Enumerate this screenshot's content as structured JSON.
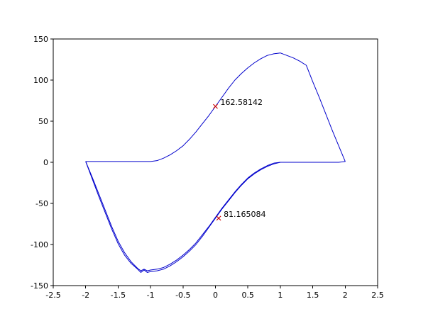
{
  "figure": {
    "background": "#ffffff",
    "border_color": "#000000",
    "tick_label_color": "#000000"
  },
  "chart_data": {
    "type": "line",
    "title": "",
    "xlabel": "",
    "ylabel": "",
    "xlim": [
      -2.5,
      2.5
    ],
    "ylim": [
      -150,
      150
    ],
    "xticks": [
      -2.5,
      -2,
      -1.5,
      -1,
      -0.5,
      0,
      0.5,
      1,
      1.5,
      2,
      2.5
    ],
    "yticks": [
      -150,
      -100,
      -50,
      0,
      50,
      100,
      150
    ],
    "grid": false,
    "legend": "none",
    "line_color": "#0000cc",
    "series": [
      {
        "name": "hysteresis-main-loop",
        "points": [
          [
            -2,
            1
          ],
          [
            -1.8,
            1
          ],
          [
            -1.6,
            1
          ],
          [
            -1.4,
            1
          ],
          [
            -1.2,
            1
          ],
          [
            -1,
            1
          ],
          [
            -0.9,
            2
          ],
          [
            -0.8,
            5
          ],
          [
            -0.7,
            9
          ],
          [
            -0.6,
            14
          ],
          [
            -0.5,
            20
          ],
          [
            -0.4,
            28
          ],
          [
            -0.3,
            37
          ],
          [
            -0.2,
            47
          ],
          [
            -0.1,
            57
          ],
          [
            0,
            68
          ],
          [
            0.1,
            79
          ],
          [
            0.2,
            90
          ],
          [
            0.3,
            100
          ],
          [
            0.4,
            108
          ],
          [
            0.5,
            115
          ],
          [
            0.6,
            121
          ],
          [
            0.7,
            126
          ],
          [
            0.8,
            130
          ],
          [
            0.9,
            132
          ],
          [
            1,
            133
          ],
          [
            1.1,
            130
          ],
          [
            1.2,
            127
          ],
          [
            1.3,
            123
          ],
          [
            1.4,
            118
          ],
          [
            1.5,
            98
          ],
          [
            1.6,
            79
          ],
          [
            1.7,
            59
          ],
          [
            1.8,
            39
          ],
          [
            1.9,
            20
          ],
          [
            2,
            1
          ],
          [
            1.9,
            0
          ],
          [
            1.7,
            0
          ],
          [
            1.5,
            0
          ],
          [
            1.3,
            0
          ],
          [
            1.1,
            0
          ],
          [
            1,
            0
          ],
          [
            0.9,
            -2
          ],
          [
            0.8,
            -5
          ],
          [
            0.7,
            -9
          ],
          [
            0.6,
            -14
          ],
          [
            0.5,
            -20
          ],
          [
            0.4,
            -28
          ],
          [
            0.3,
            -37
          ],
          [
            0.2,
            -47
          ],
          [
            0.1,
            -57
          ],
          [
            0,
            -68
          ],
          [
            -0.1,
            -79
          ],
          [
            -0.2,
            -90
          ],
          [
            -0.3,
            -100
          ],
          [
            -0.4,
            -108
          ],
          [
            -0.5,
            -115
          ],
          [
            -0.6,
            -121
          ],
          [
            -0.7,
            -126
          ],
          [
            -0.8,
            -130
          ],
          [
            -0.9,
            -132
          ],
          [
            -1,
            -133
          ],
          [
            -1.05,
            -134
          ],
          [
            -1.1,
            -131
          ],
          [
            -1.15,
            -134
          ],
          [
            -1.2,
            -130
          ],
          [
            -1.3,
            -123
          ],
          [
            -1.4,
            -113
          ],
          [
            -1.5,
            -99
          ],
          [
            -1.6,
            -81
          ],
          [
            -1.7,
            -61
          ],
          [
            -1.8,
            -41
          ],
          [
            -1.9,
            -20
          ],
          [
            -2,
            1
          ]
        ]
      },
      {
        "name": "hysteresis-transient-branch",
        "points": [
          [
            -2,
            1
          ],
          [
            -1.9,
            -18
          ],
          [
            -1.8,
            -38
          ],
          [
            -1.7,
            -58
          ],
          [
            -1.6,
            -78
          ],
          [
            -1.5,
            -96
          ],
          [
            -1.4,
            -110
          ],
          [
            -1.3,
            -121
          ],
          [
            -1.25,
            -125
          ],
          [
            -1.2,
            -129
          ],
          [
            -1.15,
            -132
          ],
          [
            -1.1,
            -130
          ],
          [
            -1.05,
            -132
          ],
          [
            -1,
            -131
          ],
          [
            -0.9,
            -130
          ],
          [
            -0.8,
            -128
          ],
          [
            -0.7,
            -124
          ],
          [
            -0.6,
            -119
          ],
          [
            -0.5,
            -113
          ],
          [
            -0.4,
            -106
          ],
          [
            -0.3,
            -98
          ],
          [
            -0.2,
            -88
          ],
          [
            -0.1,
            -78
          ],
          [
            0,
            -67
          ],
          [
            0.1,
            -56
          ],
          [
            0.2,
            -46
          ],
          [
            0.3,
            -36
          ],
          [
            0.4,
            -27
          ],
          [
            0.5,
            -19
          ],
          [
            0.6,
            -13
          ],
          [
            0.7,
            -8
          ],
          [
            0.8,
            -4
          ],
          [
            0.9,
            -1
          ],
          [
            1,
            0
          ]
        ]
      }
    ],
    "annotations": [
      {
        "x": 0,
        "y": 68,
        "label": "162.58142",
        "marker": "x",
        "marker_color": "#cc0000"
      },
      {
        "x": 0.05,
        "y": -68,
        "label": "81.165084",
        "marker": "x",
        "marker_color": "#cc0000"
      }
    ]
  }
}
